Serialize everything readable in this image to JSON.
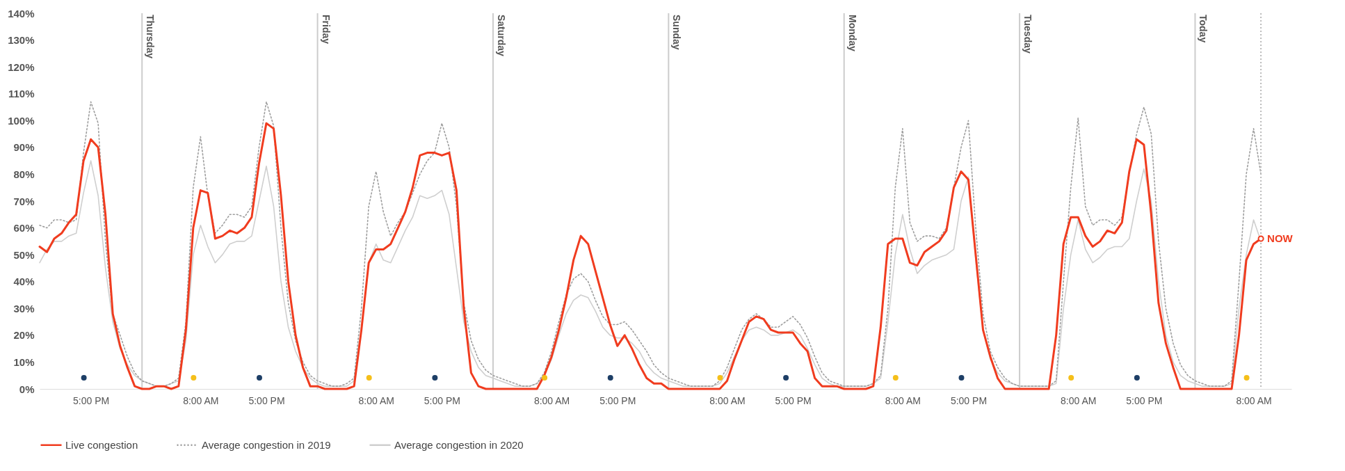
{
  "chart_data": {
    "type": "line",
    "categories": [
      null,
      null,
      null,
      null,
      null,
      null,
      null,
      "5:00 PM",
      null,
      null,
      null,
      null,
      null,
      null,
      null,
      null,
      null,
      null,
      null,
      null,
      null,
      null,
      "8:00 AM",
      null,
      null,
      null,
      null,
      null,
      null,
      null,
      null,
      "5:00 PM",
      null,
      null,
      null,
      null,
      null,
      null,
      null,
      null,
      null,
      null,
      null,
      null,
      null,
      null,
      "8:00 AM",
      null,
      null,
      null,
      null,
      null,
      null,
      null,
      null,
      "5:00 PM",
      null,
      null,
      null,
      null,
      null,
      null,
      null,
      null,
      null,
      null,
      null,
      null,
      null,
      null,
      "8:00 AM",
      null,
      null,
      null,
      null,
      null,
      null,
      null,
      null,
      "5:00 PM",
      null,
      null,
      null,
      null,
      null,
      null,
      null,
      null,
      null,
      null,
      null,
      null,
      null,
      null,
      "8:00 AM",
      null,
      null,
      null,
      null,
      null,
      null,
      null,
      null,
      "5:00 PM",
      null,
      null,
      null,
      null,
      null,
      null,
      null,
      null,
      null,
      null,
      null,
      null,
      null,
      null,
      "8:00 AM",
      null,
      null,
      null,
      null,
      null,
      null,
      null,
      null,
      "5:00 PM",
      null,
      null,
      null,
      null,
      null,
      null,
      null,
      null,
      null,
      null,
      null,
      null,
      null,
      null,
      "8:00 AM",
      null,
      null,
      null,
      null,
      null,
      null,
      null,
      null,
      "5:00 PM",
      null,
      null,
      null,
      null,
      null,
      null,
      null,
      null,
      null,
      null,
      null,
      null,
      null,
      null,
      "8:00 AM",
      null
    ],
    "series": [
      {
        "name": "Live congestion",
        "color": "#f03c1f",
        "line_style": "solid",
        "values": [
          53,
          51,
          56,
          58,
          62,
          65,
          85,
          93,
          90,
          65,
          28,
          16,
          8,
          1,
          0,
          0,
          1,
          1,
          0,
          1,
          22,
          60,
          74,
          73,
          56,
          57,
          59,
          58,
          60,
          64,
          84,
          99,
          97,
          72,
          40,
          20,
          8,
          1,
          1,
          0,
          0,
          0,
          0,
          1,
          22,
          47,
          52,
          52,
          54,
          60,
          66,
          75,
          87,
          88,
          88,
          87,
          88,
          74,
          30,
          6,
          1,
          0,
          0,
          0,
          0,
          0,
          0,
          0,
          0,
          5,
          12,
          22,
          34,
          48,
          57,
          54,
          44,
          34,
          24,
          16,
          20,
          15,
          9,
          4,
          2,
          2,
          0,
          0,
          0,
          0,
          0,
          0,
          0,
          0,
          3,
          11,
          18,
          25,
          27,
          26,
          22,
          21,
          21,
          21,
          17,
          14,
          4,
          1,
          1,
          1,
          0,
          0,
          0,
          0,
          1,
          23,
          54,
          56,
          56,
          47,
          46,
          51,
          53,
          55,
          59,
          75,
          81,
          78,
          50,
          22,
          12,
          4,
          0,
          0,
          0,
          0,
          0,
          0,
          0,
          20,
          54,
          64,
          64,
          57,
          53,
          55,
          59,
          58,
          62,
          81,
          93,
          91,
          65,
          32,
          17,
          8,
          0,
          0,
          0,
          0,
          0,
          0,
          0,
          0,
          20,
          48,
          54,
          56
        ]
      },
      {
        "name": "Average congestion in 2019",
        "color": "#9e9e9e",
        "line_style": "dotted",
        "values": [
          61,
          60,
          63,
          63,
          62,
          63,
          88,
          107,
          99,
          55,
          28,
          20,
          12,
          6,
          3,
          2,
          1,
          1,
          2,
          4,
          25,
          75,
          94,
          72,
          58,
          61,
          65,
          65,
          64,
          68,
          90,
          107,
          98,
          60,
          32,
          18,
          10,
          5,
          3,
          2,
          1,
          1,
          2,
          4,
          30,
          68,
          81,
          66,
          57,
          62,
          66,
          73,
          80,
          85,
          88,
          99,
          90,
          68,
          32,
          18,
          11,
          7,
          5,
          4,
          3,
          2,
          1,
          1,
          2,
          6,
          14,
          25,
          35,
          41,
          43,
          40,
          33,
          27,
          24,
          24,
          25,
          22,
          18,
          14,
          9,
          6,
          4,
          3,
          2,
          1,
          1,
          1,
          1,
          3,
          8,
          15,
          22,
          26,
          28,
          26,
          23,
          23,
          25,
          27,
          24,
          19,
          12,
          6,
          3,
          2,
          1,
          1,
          1,
          1,
          2,
          5,
          30,
          75,
          97,
          62,
          55,
          57,
          57,
          56,
          60,
          75,
          90,
          100,
          60,
          28,
          14,
          8,
          4,
          2,
          1,
          1,
          1,
          1,
          1,
          3,
          40,
          75,
          101,
          68,
          61,
          63,
          63,
          61,
          64,
          80,
          95,
          105,
          95,
          55,
          30,
          17,
          9,
          5,
          3,
          2,
          1,
          1,
          1,
          3,
          40,
          80,
          97,
          80
        ]
      },
      {
        "name": "Average congestion in 2020",
        "color": "#cfcfcf",
        "line_style": "solid",
        "values": [
          47,
          52,
          55,
          55,
          57,
          58,
          73,
          85,
          72,
          45,
          25,
          15,
          9,
          5,
          3,
          2,
          1,
          1,
          2,
          3,
          18,
          50,
          61,
          53,
          47,
          50,
          54,
          55,
          55,
          57,
          70,
          83,
          68,
          40,
          23,
          14,
          8,
          4,
          2,
          1,
          1,
          1,
          1,
          3,
          23,
          47,
          54,
          48,
          47,
          53,
          59,
          64,
          72,
          71,
          72,
          74,
          65,
          45,
          25,
          14,
          8,
          5,
          4,
          3,
          2,
          1,
          1,
          1,
          2,
          5,
          11,
          20,
          28,
          33,
          35,
          34,
          29,
          23,
          20,
          19,
          19,
          17,
          14,
          9,
          6,
          4,
          3,
          2,
          1,
          1,
          1,
          1,
          1,
          2,
          6,
          12,
          18,
          22,
          23,
          22,
          20,
          20,
          21,
          22,
          20,
          15,
          9,
          4,
          2,
          1,
          1,
          1,
          1,
          1,
          2,
          4,
          25,
          50,
          65,
          52,
          43,
          46,
          48,
          49,
          50,
          52,
          70,
          79,
          48,
          22,
          11,
          6,
          3,
          2,
          1,
          1,
          1,
          1,
          1,
          2,
          30,
          50,
          63,
          52,
          47,
          49,
          52,
          53,
          53,
          56,
          70,
          82,
          70,
          40,
          20,
          10,
          5,
          3,
          2,
          1,
          1,
          1,
          1,
          2,
          30,
          50,
          63,
          55
        ]
      }
    ],
    "ylim": [
      0,
      140
    ],
    "yticks": [
      {
        "value": 0,
        "label": "0%"
      },
      {
        "value": 10,
        "label": "10%"
      },
      {
        "value": 20,
        "label": "20%"
      },
      {
        "value": 30,
        "label": "30%"
      },
      {
        "value": 40,
        "label": "40%"
      },
      {
        "value": 50,
        "label": "50%"
      },
      {
        "value": 60,
        "label": "60%"
      },
      {
        "value": 70,
        "label": "70%"
      },
      {
        "value": 80,
        "label": "80%"
      },
      {
        "value": 90,
        "label": "90%"
      },
      {
        "value": 100,
        "label": "100%"
      },
      {
        "value": 110,
        "label": "110%"
      },
      {
        "value": 120,
        "label": "120%"
      },
      {
        "value": 130,
        "label": "130%"
      },
      {
        "value": 140,
        "label": "140%"
      }
    ],
    "annotations": [
      "Thursday",
      "Friday",
      "Saturday",
      "Sunday",
      "Monday",
      "Tuesday",
      "Today",
      "NOW"
    ],
    "legend": "bottom",
    "marker": "none"
  }
}
